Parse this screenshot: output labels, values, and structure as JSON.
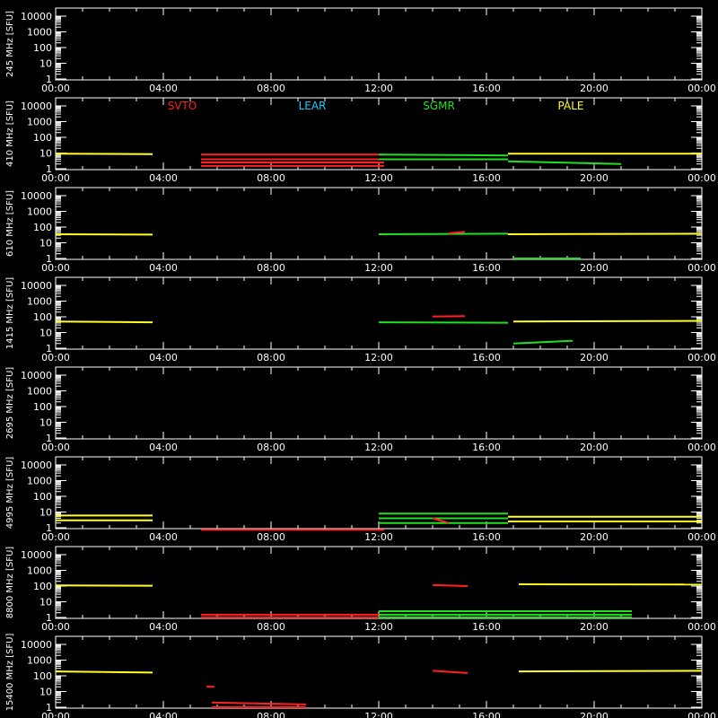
{
  "figure": {
    "background": "#000000",
    "foreground": "#ffffff",
    "stations": [
      {
        "name": "SVTO",
        "color": "#ff2020"
      },
      {
        "name": "LEAR",
        "color": "#20c8ff"
      },
      {
        "name": "SGMR",
        "color": "#20e020"
      },
      {
        "name": "PALE",
        "color": "#ffff20"
      }
    ]
  },
  "chart_data": [
    {
      "type": "line",
      "ylabel": "245 MHz [SFU]",
      "yscale": "log",
      "ylim": [
        0.7,
        15000
      ],
      "xlim": [
        0,
        24
      ],
      "yticks": [
        "1",
        "10",
        "100",
        "1000",
        "10000"
      ],
      "xticks": [
        "00:00",
        "04:00",
        "08:00",
        "12:00",
        "16:00",
        "20:00",
        "00:00"
      ],
      "series": []
    },
    {
      "type": "line",
      "ylabel": "410 MHz [SFU]",
      "yscale": "log",
      "ylim": [
        0.7,
        15000
      ],
      "xlim": [
        0,
        24
      ],
      "yticks": [
        "1",
        "10",
        "100",
        "1000",
        "10000"
      ],
      "xticks": [
        "00:00",
        "04:00",
        "08:00",
        "12:00",
        "16:00",
        "20:00",
        "00:00"
      ],
      "legend": [
        "SVTO",
        "LEAR",
        "SGMR",
        "PALE"
      ],
      "series": [
        {
          "name": "PALE",
          "segments": [
            [
              [
                0,
                9
              ],
              [
                3.6,
                8.5
              ]
            ],
            [
              [
                16.8,
                9
              ],
              [
                24,
                9
              ]
            ]
          ]
        },
        {
          "name": "SVTO",
          "segments": [
            [
              [
                5.4,
                8
              ],
              [
                12.2,
                8
              ]
            ],
            [
              [
                5.4,
                4
              ],
              [
                12.2,
                4
              ]
            ],
            [
              [
                5.4,
                2.5
              ],
              [
                12.2,
                2.5
              ]
            ],
            [
              [
                5.4,
                1.5
              ],
              [
                12.2,
                1.5
              ]
            ]
          ]
        },
        {
          "name": "SGMR",
          "segments": [
            [
              [
                12,
                8
              ],
              [
                16.8,
                7
              ]
            ],
            [
              [
                12,
                4
              ],
              [
                16.8,
                4
              ]
            ],
            [
              [
                16.8,
                3
              ],
              [
                21,
                2
              ]
            ]
          ]
        }
      ]
    },
    {
      "type": "line",
      "ylabel": "610 MHz [SFU]",
      "yscale": "log",
      "ylim": [
        0.7,
        15000
      ],
      "xlim": [
        0,
        24
      ],
      "yticks": [
        "1",
        "10",
        "100",
        "1000",
        "10000"
      ],
      "xticks": [
        "00:00",
        "04:00",
        "08:00",
        "12:00",
        "16:00",
        "20:00",
        "00:00"
      ],
      "series": [
        {
          "name": "PALE",
          "segments": [
            [
              [
                0,
                35
              ],
              [
                3.6,
                33
              ]
            ],
            [
              [
                16.8,
                35
              ],
              [
                24,
                38
              ]
            ]
          ]
        },
        {
          "name": "SGMR",
          "segments": [
            [
              [
                12,
                35
              ],
              [
                16.8,
                38
              ]
            ],
            [
              [
                17,
                1
              ],
              [
                19.5,
                1
              ]
            ]
          ]
        },
        {
          "name": "SVTO",
          "segments": [
            [
              [
                14.6,
                40
              ],
              [
                15.2,
                50
              ]
            ]
          ]
        }
      ]
    },
    {
      "type": "line",
      "ylabel": "1415 MHz [SFU]",
      "yscale": "log",
      "ylim": [
        0.7,
        15000
      ],
      "xlim": [
        0,
        24
      ],
      "yticks": [
        "1",
        "10",
        "100",
        "1000",
        "10000"
      ],
      "xticks": [
        "00:00",
        "04:00",
        "08:00",
        "12:00",
        "16:00",
        "20:00",
        "00:00"
      ],
      "series": [
        {
          "name": "PALE",
          "segments": [
            [
              [
                0,
                50
              ],
              [
                3.6,
                45
              ]
            ],
            [
              [
                17,
                50
              ],
              [
                24,
                55
              ]
            ]
          ]
        },
        {
          "name": "SGMR",
          "segments": [
            [
              [
                12,
                45
              ],
              [
                16.8,
                42
              ]
            ],
            [
              [
                17,
                2
              ],
              [
                19.2,
                3
              ]
            ]
          ]
        },
        {
          "name": "SVTO",
          "segments": [
            [
              [
                14,
                105
              ],
              [
                15.2,
                110
              ]
            ]
          ]
        }
      ]
    },
    {
      "type": "line",
      "ylabel": "2695 MHz [SFU]",
      "yscale": "log",
      "ylim": [
        0.7,
        15000
      ],
      "xlim": [
        0,
        24
      ],
      "yticks": [
        "1",
        "10",
        "100",
        "1000",
        "10000"
      ],
      "xticks": [
        "00:00",
        "04:00",
        "08:00",
        "12:00",
        "16:00",
        "20:00",
        "00:00"
      ],
      "series": []
    },
    {
      "type": "line",
      "ylabel": "4995 MHz [SFU]",
      "yscale": "log",
      "ylim": [
        0.7,
        15000
      ],
      "xlim": [
        0,
        24
      ],
      "yticks": [
        "1",
        "10",
        "100",
        "1000",
        "10000"
      ],
      "xticks": [
        "00:00",
        "04:00",
        "08:00",
        "12:00",
        "16:00",
        "20:00",
        "00:00"
      ],
      "series": [
        {
          "name": "PALE",
          "segments": [
            [
              [
                0,
                6
              ],
              [
                3.6,
                6
              ]
            ],
            [
              [
                0,
                3
              ],
              [
                3.6,
                3
              ]
            ],
            [
              [
                16.8,
                5
              ],
              [
                24,
                5
              ]
            ],
            [
              [
                16.8,
                2.5
              ],
              [
                24,
                2.5
              ]
            ]
          ]
        },
        {
          "name": "SGMR",
          "segments": [
            [
              [
                12,
                8
              ],
              [
                16.8,
                8
              ]
            ],
            [
              [
                12,
                4
              ],
              [
                16.8,
                4
              ]
            ],
            [
              [
                12,
                2
              ],
              [
                16.8,
                2
              ]
            ]
          ]
        },
        {
          "name": "SVTO",
          "segments": [
            [
              [
                5.4,
                0.75
              ],
              [
                12.2,
                0.75
              ]
            ],
            [
              [
                14,
                4
              ],
              [
                14.6,
                2
              ]
            ]
          ]
        }
      ]
    },
    {
      "type": "line",
      "ylabel": "8800 MHz [SFU]",
      "yscale": "log",
      "ylim": [
        0.7,
        15000
      ],
      "xlim": [
        0,
        24
      ],
      "yticks": [
        "1",
        "10",
        "100",
        "1000",
        "10000"
      ],
      "xticks": [
        "00:00",
        "04:00",
        "08:00",
        "12:00",
        "16:00",
        "20:00",
        "00:00"
      ],
      "series": [
        {
          "name": "PALE",
          "segments": [
            [
              [
                0,
                110
              ],
              [
                3.6,
                105
              ]
            ],
            [
              [
                17.2,
                130
              ],
              [
                24,
                125
              ]
            ]
          ]
        },
        {
          "name": "SVTO",
          "segments": [
            [
              [
                5.4,
                1.5
              ],
              [
                12,
                1.5
              ]
            ],
            [
              [
                5.4,
                1.0
              ],
              [
                12,
                1.0
              ]
            ],
            [
              [
                14,
                115
              ],
              [
                15.3,
                100
              ]
            ]
          ]
        },
        {
          "name": "SGMR",
          "segments": [
            [
              [
                12,
                2.5
              ],
              [
                21.4,
                2.5
              ]
            ],
            [
              [
                12,
                1.5
              ],
              [
                21.4,
                1.5
              ]
            ],
            [
              [
                12,
                1.0
              ],
              [
                21.4,
                1.0
              ]
            ]
          ]
        }
      ]
    },
    {
      "type": "line",
      "ylabel": "15400 MHz [SFU]",
      "yscale": "log",
      "ylim": [
        0.7,
        15000
      ],
      "xlim": [
        0,
        24
      ],
      "yticks": [
        "1",
        "10",
        "100",
        "1000",
        "10000"
      ],
      "xticks": [
        "00:00",
        "04:00",
        "08:00",
        "12:00",
        "16:00",
        "20:00",
        "00:00"
      ],
      "series": [
        {
          "name": "PALE",
          "segments": [
            [
              [
                0,
                190
              ],
              [
                3.6,
                160
              ]
            ],
            [
              [
                17.2,
                190
              ],
              [
                24,
                210
              ]
            ]
          ]
        },
        {
          "name": "SVTO",
          "segments": [
            [
              [
                5.6,
                20
              ],
              [
                5.9,
                20
              ]
            ],
            [
              [
                5.8,
                2
              ],
              [
                9.3,
                1.5
              ]
            ],
            [
              [
                5.8,
                1
              ],
              [
                9.3,
                1
              ]
            ],
            [
              [
                14,
                210
              ],
              [
                15.3,
                150
              ]
            ]
          ]
        }
      ]
    }
  ]
}
